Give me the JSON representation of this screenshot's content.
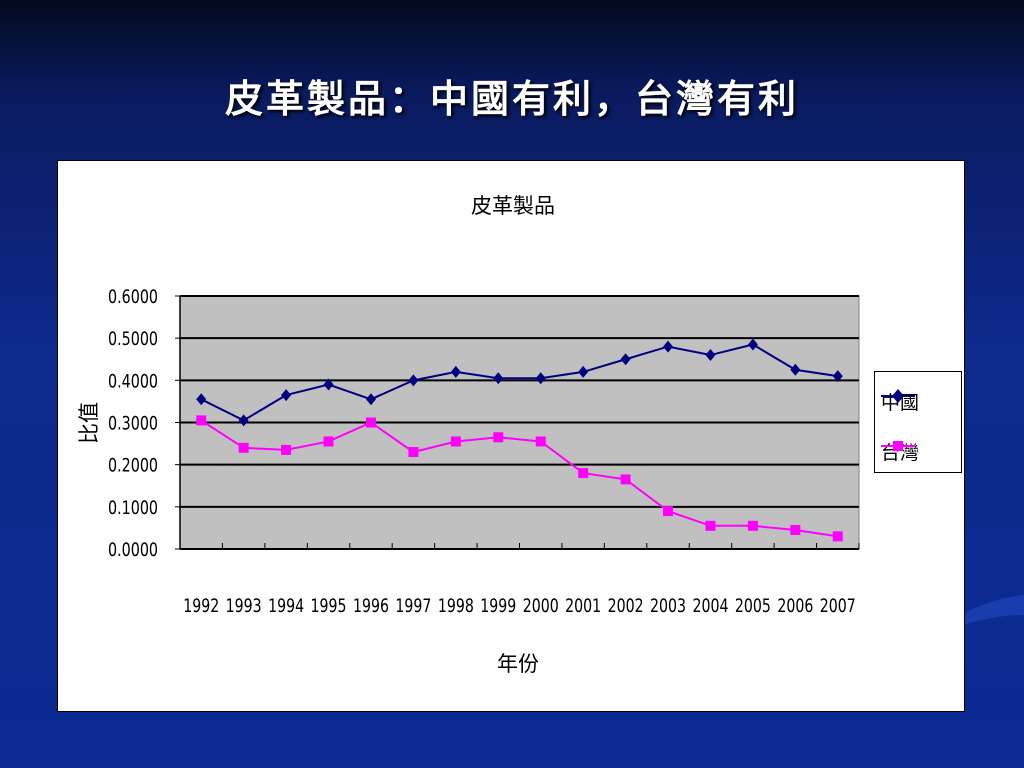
{
  "slide": {
    "title": "皮革製品：中國有利，台灣有利"
  },
  "chart_data": {
    "type": "line",
    "title": "皮革製品",
    "xlabel": "年份",
    "ylabel": "比值",
    "categories": [
      "1992",
      "1993",
      "1994",
      "1995",
      "1996",
      "1997",
      "1998",
      "1999",
      "2000",
      "2001",
      "2002",
      "2003",
      "2004",
      "2005",
      "2006",
      "2007"
    ],
    "ylim": [
      0,
      0.6
    ],
    "yticks": [
      "0.0000",
      "0.1000",
      "0.2000",
      "0.3000",
      "0.4000",
      "0.5000",
      "0.6000"
    ],
    "grid": true,
    "plot_background": "#c0c0c0",
    "legend_position": "right",
    "series": [
      {
        "name": "中國",
        "color": "#000080",
        "marker": "diamond",
        "values": [
          0.355,
          0.305,
          0.365,
          0.39,
          0.355,
          0.4,
          0.42,
          0.405,
          0.405,
          0.42,
          0.45,
          0.48,
          0.46,
          0.485,
          0.425,
          0.41
        ]
      },
      {
        "name": "台灣",
        "color": "#ff00ff",
        "marker": "square",
        "values": [
          0.305,
          0.24,
          0.235,
          0.255,
          0.3,
          0.23,
          0.255,
          0.265,
          0.255,
          0.18,
          0.165,
          0.09,
          0.055,
          0.055,
          0.045,
          0.03
        ]
      }
    ]
  }
}
